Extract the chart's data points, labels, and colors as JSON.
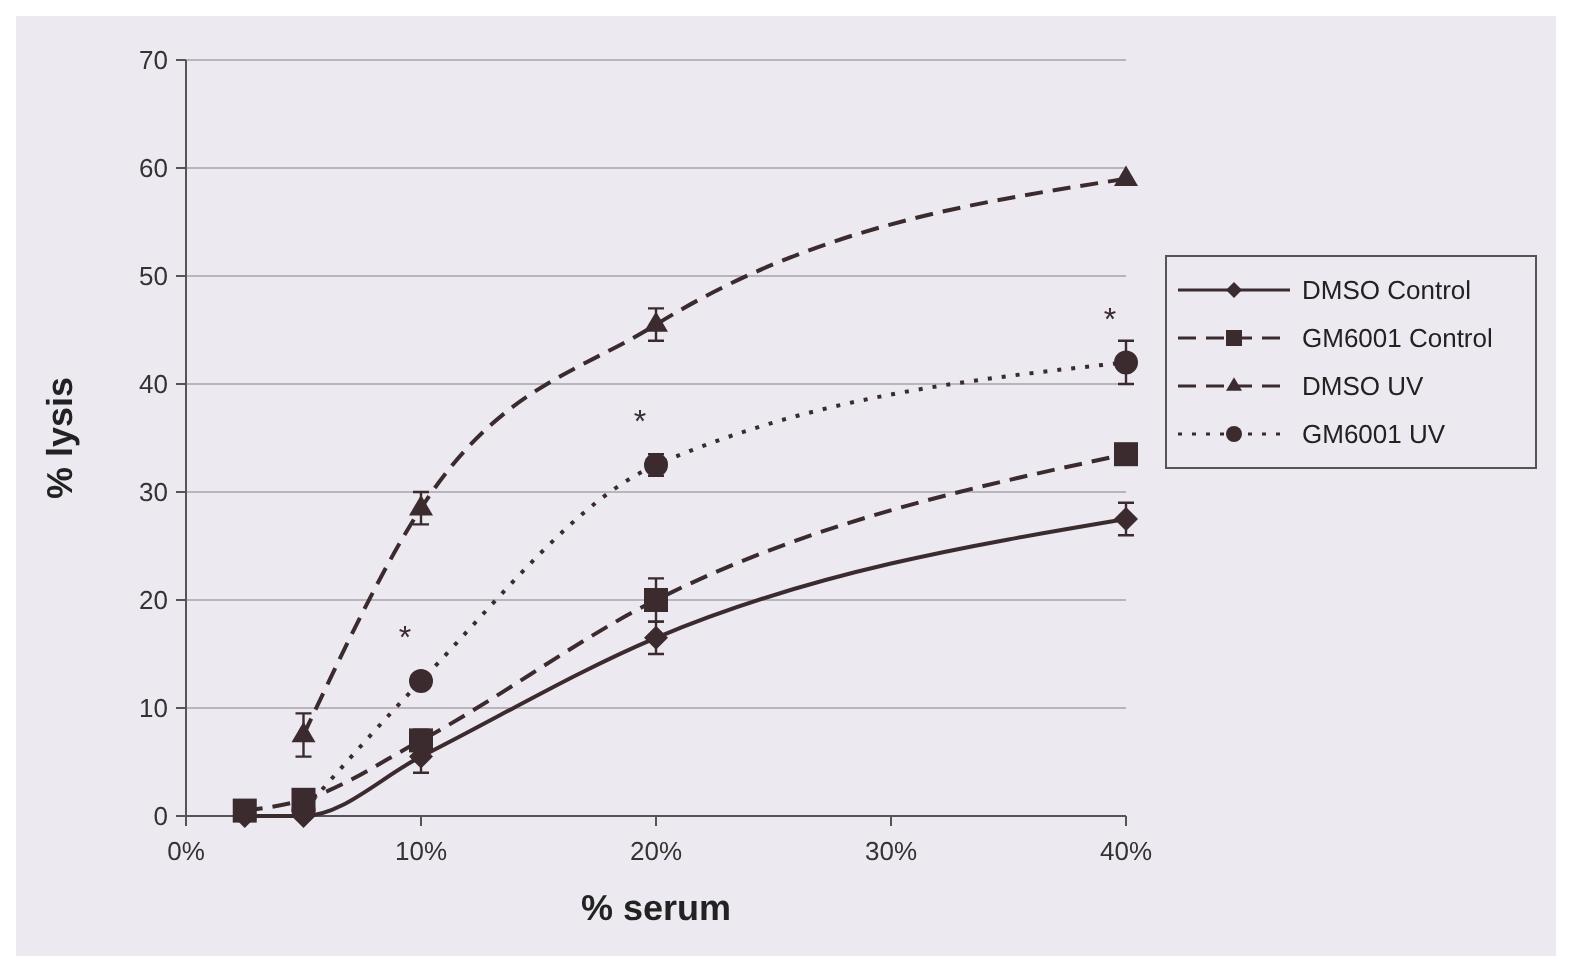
{
  "chart_data": {
    "type": "line",
    "xlabel": "% serum",
    "ylabel": "% lysis",
    "x": [
      2.5,
      5,
      10,
      20,
      40
    ],
    "xlim": [
      0,
      40
    ],
    "xticks": [
      {
        "value": 0,
        "label": "0%"
      },
      {
        "value": 10,
        "label": "10%"
      },
      {
        "value": 20,
        "label": "20%"
      },
      {
        "value": 30,
        "label": "30%"
      },
      {
        "value": 40,
        "label": "40%"
      }
    ],
    "ylim": [
      0,
      70
    ],
    "yticks": [
      0,
      10,
      20,
      30,
      40,
      50,
      60,
      70
    ],
    "grid": "y",
    "legend": "right",
    "series": [
      {
        "name": "DMSO Control",
        "color": "#3b2b2e",
        "marker": "diamond",
        "line_style": "solid",
        "values": [
          0,
          0,
          5.5,
          16.5,
          27.5
        ],
        "errors": [
          null,
          null,
          1.5,
          1.5,
          1.5
        ]
      },
      {
        "name": "GM6001 Control",
        "color": "#3b2b2e",
        "marker": "square",
        "line_style": "dashed",
        "values": [
          0.5,
          1.5,
          7,
          20,
          33.5
        ],
        "errors": [
          null,
          null,
          1,
          2,
          null
        ]
      },
      {
        "name": "DMSO UV",
        "color": "#3b2b2e",
        "marker": "triangle",
        "line_style": "dashed",
        "values": [
          null,
          7.5,
          28.5,
          45.5,
          59
        ],
        "errors": [
          null,
          2,
          1.5,
          1.5,
          null
        ]
      },
      {
        "name": "GM6001 UV",
        "color": "#3b2b2e",
        "marker": "circle",
        "line_style": "dotted",
        "values": [
          null,
          0.5,
          12.5,
          32.5,
          42
        ],
        "errors": [
          null,
          null,
          null,
          1,
          2
        ]
      }
    ],
    "annotations": [
      {
        "text": "*",
        "x": 10,
        "y": 12.5
      },
      {
        "text": "*",
        "x": 20,
        "y": 32.5
      },
      {
        "text": "*",
        "x": 40,
        "y": 42
      }
    ]
  }
}
